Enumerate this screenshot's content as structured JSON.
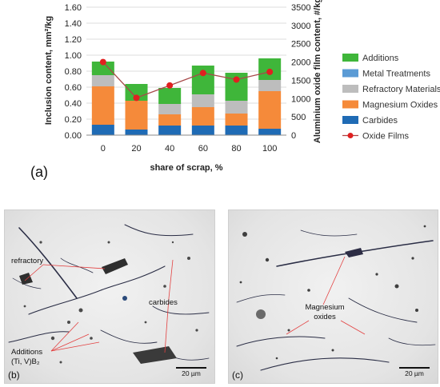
{
  "chart_data": {
    "type": "bar",
    "stacked": true,
    "categories": [
      "0",
      "20",
      "40",
      "60",
      "80",
      "100"
    ],
    "xlabel": "share of scrap, %",
    "ylabel": "Inclusion content, mm²/kg",
    "y2label": "Aluminium oxide film content, #/kg",
    "ylim": [
      0,
      1.6
    ],
    "yticks": [
      "0.00",
      "0.20",
      "0.40",
      "0.60",
      "0.80",
      "1.00",
      "1.20",
      "1.40",
      "1.60"
    ],
    "y2lim": [
      0,
      3500
    ],
    "y2ticks": [
      "0",
      "500",
      "1000",
      "1500",
      "2000",
      "2500",
      "3000",
      "3500"
    ],
    "legend_position": "right",
    "grid": true,
    "series": [
      {
        "name": "Carbides",
        "color": "#1f6bb5",
        "values": [
          0.13,
          0.07,
          0.12,
          0.12,
          0.12,
          0.08
        ]
      },
      {
        "name": "Magnesium Oxides",
        "color": "#f58a3a",
        "values": [
          0.48,
          0.36,
          0.14,
          0.23,
          0.15,
          0.47
        ]
      },
      {
        "name": "Refractory Materials",
        "color": "#bdbdbd",
        "values": [
          0.14,
          0.0,
          0.13,
          0.16,
          0.16,
          0.14
        ]
      },
      {
        "name": "Metal Treatments",
        "color": "#5b9bd5",
        "values": [
          0.0,
          0.0,
          0.0,
          0.0,
          0.0,
          0.0
        ]
      },
      {
        "name": "Additions",
        "color": "#3fb63a",
        "values": [
          0.17,
          0.21,
          0.2,
          0.36,
          0.35,
          0.27
        ]
      }
    ],
    "line": {
      "name": "Oxide Films",
      "color": "#e02020",
      "values": [
        2000,
        1020,
        1360,
        1700,
        1520,
        1730
      ]
    }
  },
  "panels": {
    "a": "(a)",
    "b": "(b)",
    "c": "(c)"
  },
  "micrographs": {
    "b": {
      "refractory": "refractory",
      "carbides": "carbides",
      "additions_1": "Additions",
      "additions_2": "(Ti, V)B₂",
      "scalebar": "20 µm"
    },
    "c": {
      "magnesium_1": "Magnesium",
      "magnesium_2": "oxides",
      "scalebar": "20 µm"
    }
  }
}
